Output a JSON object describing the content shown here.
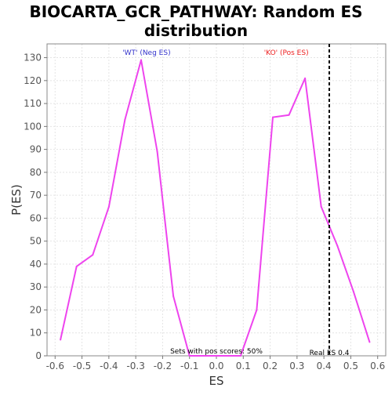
{
  "chart_data": {
    "type": "line",
    "title": "BIOCARTA_GCR_PATHWAY: Random ES distribution",
    "title_lines": [
      "BIOCARTA_GCR_PATHWAY: Random ES",
      "distribution"
    ],
    "xlabel": "ES",
    "ylabel": "P(ES)",
    "xlim": [
      -0.63,
      0.63
    ],
    "ylim": [
      0,
      136
    ],
    "x_ticks": [
      -0.6,
      -0.5,
      -0.4,
      -0.3,
      -0.2,
      -0.1,
      0.0,
      0.1,
      0.2,
      0.3,
      0.4,
      0.5,
      0.6
    ],
    "x_tick_labels": [
      "-0.6",
      "-0.5",
      "-0.4",
      "-0.3",
      "-0.2",
      "-0.1",
      "0.0",
      "0.1",
      "0.2",
      "0.3",
      "0.4",
      "0.5",
      "0.6"
    ],
    "y_ticks": [
      0,
      10,
      20,
      30,
      40,
      50,
      60,
      70,
      80,
      90,
      100,
      110,
      120,
      130
    ],
    "y_tick_labels": [
      "0",
      "10",
      "20",
      "30",
      "40",
      "50",
      "60",
      "70",
      "80",
      "90",
      "100",
      "110",
      "120",
      "130"
    ],
    "grid": true,
    "series": [
      {
        "color": "#ee44ee",
        "x": [
          -0.58,
          -0.52,
          -0.46,
          -0.4,
          -0.34,
          -0.28,
          -0.22,
          -0.16,
          -0.1,
          -0.04,
          0.03,
          0.09,
          0.15,
          0.21,
          0.27,
          0.33,
          0.39,
          0.45,
          0.51,
          0.57
        ],
        "y": [
          7,
          39,
          44,
          65,
          103,
          129,
          89,
          26,
          0,
          0,
          0,
          0,
          20,
          104,
          105,
          121,
          65,
          48,
          28,
          6
        ]
      }
    ],
    "real_es": 0.42,
    "real_es_line_color": "#000000",
    "annotations": {
      "neg_label": "'WT' (Neg ES)",
      "neg_color": "#3333cc",
      "pos_label": "'KO' (Pos ES)",
      "pos_color": "#ee2222",
      "sets_with_pos": "Sets with pos scores: 50%",
      "real_es_label": "Real ES 0.4"
    }
  }
}
